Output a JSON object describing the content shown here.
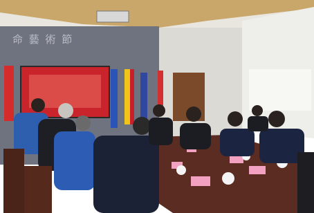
{
  "wall_text": "命 藝 術 節"
}
